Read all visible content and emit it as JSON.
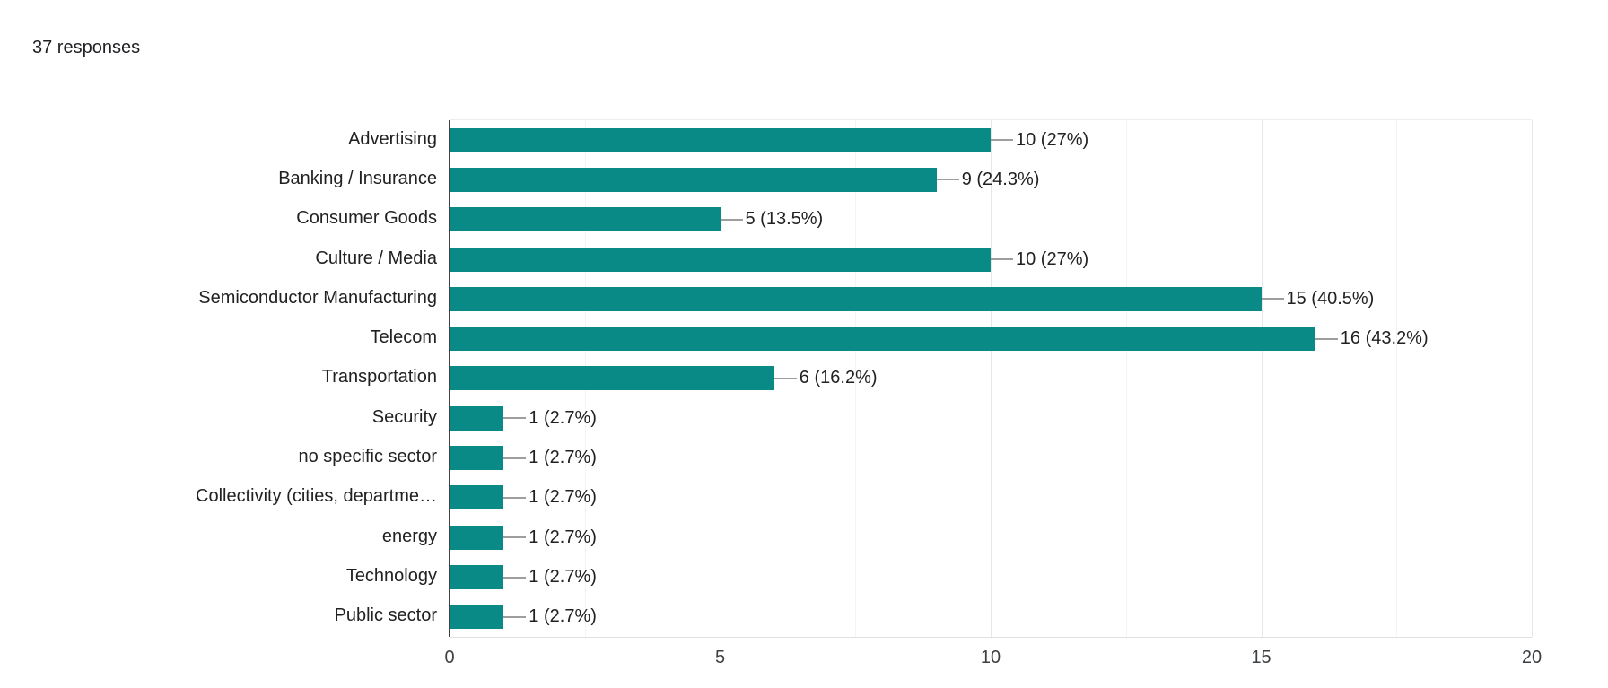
{
  "header": {
    "responses_label": "37 responses"
  },
  "colors": {
    "bar": "#0a8a86",
    "axis_line": "#424242",
    "major_gridline": "#e7e7e7",
    "minor_gridline": "#f4f4f4",
    "baseline": "#e0e0e0",
    "connector": "#9e9e9e",
    "text": "#212121"
  },
  "chart_data": {
    "type": "bar",
    "orientation": "horizontal",
    "title": "",
    "xlabel": "",
    "ylabel": "",
    "categories": [
      "Advertising",
      "Banking / Insurance",
      "Consumer Goods",
      "Culture / Media",
      "Semiconductor Manufacturing",
      "Telecom",
      "Transportation",
      "Security",
      "no specific sector",
      "Collectivity (cities, departme…",
      "energy",
      "Technology",
      "Public sector"
    ],
    "values": [
      10,
      9,
      5,
      10,
      15,
      16,
      6,
      1,
      1,
      1,
      1,
      1,
      1
    ],
    "value_labels": [
      "10 (27%)",
      "9 (24.3%)",
      "5 (13.5%)",
      "10 (27%)",
      "15 (40.5%)",
      "16 (43.2%)",
      "6 (16.2%)",
      "1 (2.7%)",
      "1 (2.7%)",
      "1 (2.7%)",
      "1 (2.7%)",
      "1 (2.7%)",
      "1 (2.7%)"
    ],
    "xlim": [
      0,
      20
    ],
    "x_ticks": [
      0,
      5,
      10,
      15,
      20
    ],
    "minor_x_ticks": [
      2.5,
      7.5,
      12.5,
      17.5
    ],
    "grid": true,
    "legend": "none"
  }
}
